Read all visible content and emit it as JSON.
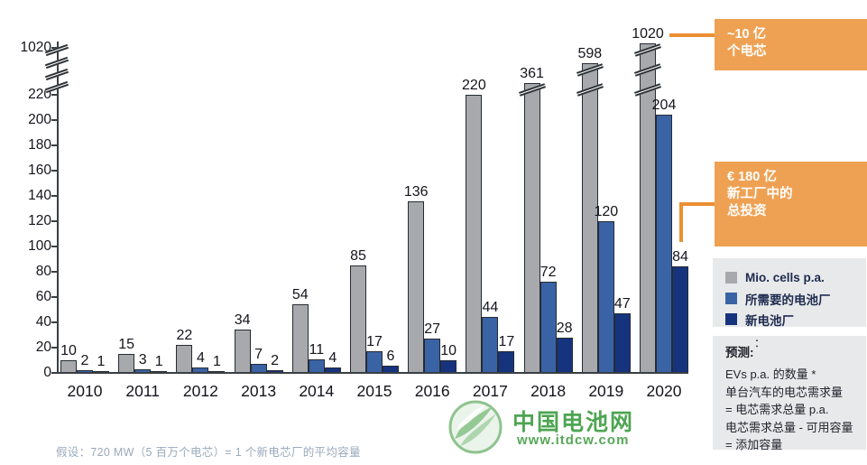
{
  "chart_data": {
    "type": "bar",
    "title": "",
    "xlabel": "",
    "ylabel": "",
    "grid": false,
    "legend_position": "right-box",
    "categories": [
      "2010",
      "2011",
      "2012",
      "2013",
      "2014",
      "2015",
      "2016",
      "2017",
      "2018",
      "2019",
      "2020"
    ],
    "series": [
      {
        "name": "Mio. cells p.a.",
        "color": "#a7a9ac",
        "values": [
          10,
          15,
          22,
          34,
          54,
          85,
          136,
          220,
          361,
          598,
          1020
        ]
      },
      {
        "name": "所需要的电池厂",
        "color": "#3a63a5",
        "values": [
          2,
          3,
          4,
          7,
          11,
          17,
          27,
          44,
          72,
          120,
          204
        ]
      },
      {
        "name": "新电池厂",
        "color": "#16337e",
        "values": [
          1,
          1,
          1,
          2,
          4,
          6,
          10,
          17,
          28,
          47,
          84
        ]
      }
    ],
    "ylim": [
      0,
      220
    ],
    "yticks": [
      0,
      20,
      40,
      60,
      80,
      100,
      120,
      140,
      160,
      180,
      200,
      220
    ],
    "broken_axis": true,
    "broken_axis_top_tick": 1020,
    "axis_break_mark_count": 4,
    "truncated_bars": [
      {
        "category": "2018",
        "series_index": 0,
        "break_marks": 1
      },
      {
        "category": "2019",
        "series_index": 0,
        "break_marks": 2
      },
      {
        "category": "2020",
        "series_index": 0,
        "break_marks": 3
      }
    ]
  },
  "callouts": {
    "cells_total": {
      "lines": [
        "~10 亿",
        "个电芯"
      ]
    },
    "investment": {
      "lines": [
        "€ 180 亿",
        "新工厂中的",
        "总投资"
      ]
    }
  },
  "forecast_note": {
    "heading": "预测:",
    "stray_mark": "：",
    "lines": [
      "EVs p.a. 的数量 *",
      "单台汽车的电芯需求量",
      "= 电芯需求总量 p.a.",
      "电芯需求总量 - 可用容量 = 添加容量"
    ]
  },
  "footnote": "假设：720 MW（5 百万个电芯）= 1 个新电芯厂的平均容量",
  "watermark": {
    "name": "中国电池网",
    "url": "www.itdcw.com"
  },
  "colors": {
    "accent_orange": "#efa153",
    "connector_orange": "#ec8f33",
    "panel_gray": "#e8e9ea",
    "axis_dark": "#3a3f44",
    "bar_gray": "#a7a9ac",
    "bar_blue": "#3a63a5",
    "bar_navy": "#16337e",
    "footnote_gray": "#9aaabb",
    "watermark_green": "#3f9e44"
  }
}
